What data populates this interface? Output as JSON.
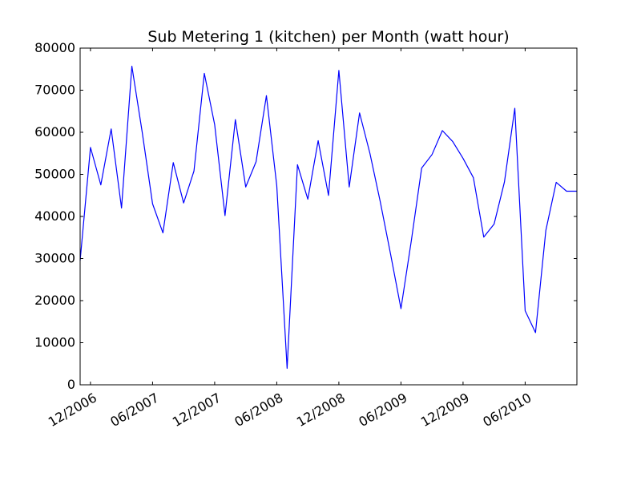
{
  "chart_data": {
    "type": "line",
    "title": "Sub Metering 1 (kitchen) per Month (watt hour)",
    "xlabel": "",
    "ylabel": "",
    "ylim": [
      0,
      80000
    ],
    "xlim": [
      "2006-11",
      "2010-11"
    ],
    "y_ticks": [
      "0",
      "10000",
      "20000",
      "30000",
      "40000",
      "50000",
      "60000",
      "70000",
      "80000"
    ],
    "x_ticks": [
      {
        "date": "2006-12",
        "label": "12/2006"
      },
      {
        "date": "2007-06",
        "label": "06/2007"
      },
      {
        "date": "2007-12",
        "label": "12/2007"
      },
      {
        "date": "2008-06",
        "label": "06/2008"
      },
      {
        "date": "2008-12",
        "label": "12/2008"
      },
      {
        "date": "2009-06",
        "label": "06/2009"
      },
      {
        "date": "2009-12",
        "label": "12/2009"
      },
      {
        "date": "2010-06",
        "label": "06/2010"
      }
    ],
    "grid": false,
    "series": [
      {
        "color": "#0000ff",
        "x": [
          "2006-11",
          "2006-12",
          "2007-01",
          "2007-02",
          "2007-03",
          "2007-04",
          "2007-05",
          "2007-06",
          "2007-07",
          "2007-08",
          "2007-09",
          "2007-10",
          "2007-11",
          "2007-12",
          "2008-01",
          "2008-02",
          "2008-03",
          "2008-04",
          "2008-05",
          "2008-06",
          "2008-07",
          "2008-08",
          "2008-09",
          "2008-10",
          "2008-11",
          "2008-12",
          "2009-01",
          "2009-02",
          "2009-03",
          "2009-04",
          "2009-05",
          "2009-06",
          "2009-07",
          "2009-08",
          "2009-09",
          "2009-10",
          "2009-11",
          "2009-12",
          "2010-01",
          "2010-02",
          "2010-03",
          "2010-04",
          "2010-05",
          "2010-06",
          "2010-07",
          "2010-08",
          "2010-09",
          "2010-10",
          "2010-11"
        ],
        "values": [
          29500,
          56400,
          47500,
          60800,
          42000,
          75700,
          60000,
          43000,
          36100,
          52800,
          43200,
          50800,
          74000,
          61800,
          40200,
          63000,
          47000,
          53000,
          68700,
          47300,
          3900,
          52300,
          44100,
          58000,
          45000,
          74700,
          47000,
          64600,
          55000,
          43500,
          31000,
          18100,
          34200,
          51500,
          54700,
          60400,
          57800,
          53800,
          49200,
          35100,
          38200,
          48200,
          65700,
          17600,
          12400,
          36700,
          48100,
          46000,
          46000
        ]
      }
    ]
  }
}
